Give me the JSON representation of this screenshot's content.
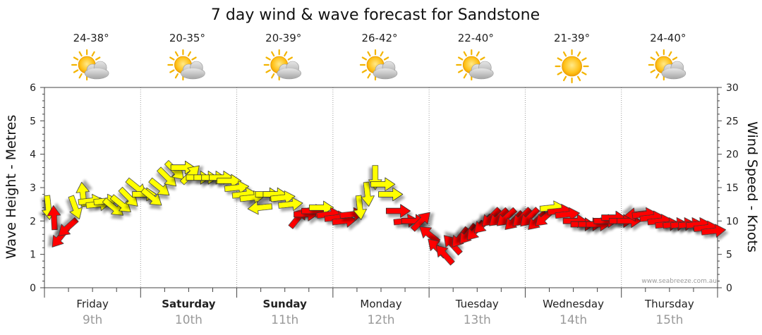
{
  "chart_data": {
    "type": "line",
    "title": "7 day wind & wave forecast for Sandstone",
    "ylabel_left": "Wave Height - Metres",
    "ylabel_right": "Wind Speed - Knots",
    "ylim_left": [
      0,
      6
    ],
    "ylim_right": [
      0,
      30
    ],
    "yticks_left": [
      "0",
      "1",
      "2",
      "3",
      "4",
      "5",
      "6"
    ],
    "yticks_right": [
      "0",
      "5",
      "10",
      "15",
      "20",
      "25",
      "30"
    ],
    "days": [
      {
        "name": "Friday",
        "date": "9th",
        "bold": false,
        "temp": "24-38°",
        "weather": "partly-cloudy-icon"
      },
      {
        "name": "Saturday",
        "date": "10th",
        "bold": true,
        "temp": "20-35°",
        "weather": "partly-cloudy-icon"
      },
      {
        "name": "Sunday",
        "date": "11th",
        "bold": true,
        "temp": "20-39°",
        "weather": "partly-cloudy-icon"
      },
      {
        "name": "Monday",
        "date": "12th",
        "bold": false,
        "temp": "26-42°",
        "weather": "partly-cloudy-icon"
      },
      {
        "name": "Tuesday",
        "date": "13th",
        "bold": false,
        "temp": "22-40°",
        "weather": "partly-cloudy-icon"
      },
      {
        "name": "Wednesday",
        "date": "14th",
        "bold": false,
        "temp": "21-39°",
        "weather": "sunny-icon"
      },
      {
        "name": "Thursday",
        "date": "15th",
        "bold": false,
        "temp": "24-40°",
        "weather": "partly-cloudy-icon"
      }
    ],
    "credit": "www.seabreeze.com.au",
    "colors": {
      "strong": "#ff0000",
      "moderate": "#ffff00",
      "light": "#00cc00",
      "outline": "#333333"
    },
    "wind_series": {
      "name": "Wind",
      "points": [
        [
          0.0,
          12.0,
          "s",
          40
        ],
        [
          0.06,
          10.5,
          "n",
          25
        ],
        [
          0.12,
          7.5,
          "sw",
          40
        ],
        [
          0.2,
          9.0,
          "sw",
          35
        ],
        [
          0.28,
          12.0,
          "sse",
          10
        ],
        [
          0.36,
          14.0,
          "n",
          80
        ],
        [
          0.44,
          13.0,
          "e",
          20
        ],
        [
          0.52,
          12.5,
          "e",
          20
        ],
        [
          0.6,
          13.0,
          "e",
          20
        ],
        [
          0.68,
          12.0,
          "se",
          60
        ],
        [
          0.76,
          12.5,
          "se",
          60
        ],
        [
          0.84,
          13.5,
          "se",
          50
        ],
        [
          0.92,
          15.0,
          "se",
          60
        ],
        [
          1.0,
          14.0,
          "e",
          10
        ],
        [
          1.08,
          13.5,
          "se",
          40
        ],
        [
          1.16,
          15.0,
          "se",
          60
        ],
        [
          1.24,
          16.5,
          "se",
          50
        ],
        [
          1.32,
          17.5,
          "se",
          30
        ],
        [
          1.4,
          18.0,
          "e",
          10
        ],
        [
          1.48,
          17.0,
          "ne",
          10
        ],
        [
          1.56,
          16.5,
          "e",
          90
        ],
        [
          1.64,
          16.5,
          "e",
          90
        ],
        [
          1.72,
          16.5,
          "e",
          90
        ],
        [
          1.8,
          16.5,
          "e",
          90
        ],
        [
          1.88,
          16.0,
          "e",
          70
        ],
        [
          1.96,
          15.0,
          "e",
          60
        ],
        [
          2.04,
          14.0,
          "e",
          60
        ],
        [
          2.12,
          13.5,
          "e",
          40
        ],
        [
          2.2,
          12.0,
          "w",
          60
        ],
        [
          2.28,
          14.0,
          "e",
          70
        ],
        [
          2.36,
          14.0,
          "e",
          70
        ],
        [
          2.44,
          13.5,
          "e",
          60
        ],
        [
          2.52,
          12.5,
          "e",
          60
        ],
        [
          2.6,
          10.5,
          "ne",
          60
        ],
        [
          2.68,
          11.0,
          "e",
          70
        ],
        [
          2.76,
          11.5,
          "e",
          70
        ],
        [
          2.84,
          12.0,
          "e",
          70
        ],
        [
          2.92,
          11.0,
          "e",
          60
        ],
        [
          3.0,
          10.5,
          "e",
          60
        ],
        [
          3.08,
          10.0,
          "e",
          60
        ],
        [
          3.16,
          11.0,
          "e",
          40
        ],
        [
          3.24,
          12.0,
          "s",
          40
        ],
        [
          3.32,
          14.0,
          "s",
          40
        ],
        [
          3.4,
          16.5,
          "s",
          30
        ],
        [
          3.48,
          15.5,
          "e",
          30
        ],
        [
          3.56,
          14.0,
          "e",
          70
        ],
        [
          3.64,
          11.5,
          "e",
          70
        ],
        [
          3.72,
          10.0,
          "e",
          80
        ],
        [
          3.8,
          10.0,
          "e",
          90
        ],
        [
          3.88,
          10.0,
          "ne",
          30
        ],
        [
          3.96,
          8.0,
          "nw",
          20
        ],
        [
          4.04,
          6.0,
          "nw",
          10
        ],
        [
          4.12,
          5.0,
          "nw",
          15
        ],
        [
          4.2,
          6.5,
          "nw",
          15
        ],
        [
          4.28,
          7.5,
          "sw",
          20
        ],
        [
          4.36,
          8.0,
          "sw",
          20
        ],
        [
          4.44,
          8.5,
          "sw",
          25
        ],
        [
          4.52,
          9.5,
          "sw",
          30
        ],
        [
          4.6,
          10.5,
          "sw",
          30
        ],
        [
          4.68,
          10.5,
          "sw",
          35
        ],
        [
          4.76,
          10.5,
          "sw",
          35
        ],
        [
          4.84,
          10.0,
          "sw",
          30
        ],
        [
          4.92,
          10.5,
          "sw",
          30
        ],
        [
          5.0,
          10.5,
          "sw",
          30
        ],
        [
          5.08,
          10.0,
          "sw",
          30
        ],
        [
          5.16,
          10.5,
          "sw",
          35
        ],
        [
          5.24,
          12.0,
          "e",
          40
        ],
        [
          5.32,
          11.5,
          "e",
          60
        ],
        [
          5.4,
          11.0,
          "e",
          60
        ],
        [
          5.48,
          10.0,
          "e",
          50
        ],
        [
          5.56,
          9.5,
          "e",
          50
        ],
        [
          5.64,
          9.5,
          "e",
          50
        ],
        [
          5.72,
          9.5,
          "e",
          50
        ],
        [
          5.8,
          10.0,
          "e",
          50
        ],
        [
          5.88,
          10.5,
          "e",
          50
        ],
        [
          5.96,
          10.0,
          "e",
          50
        ],
        [
          6.04,
          10.0,
          "e",
          50
        ],
        [
          6.12,
          11.0,
          "w",
          60
        ],
        [
          6.2,
          11.0,
          "e",
          60
        ],
        [
          6.28,
          10.5,
          "e",
          60
        ],
        [
          6.36,
          10.0,
          "e",
          60
        ],
        [
          6.44,
          9.5,
          "e",
          60
        ],
        [
          6.52,
          9.5,
          "e",
          60
        ],
        [
          6.6,
          9.5,
          "e",
          60
        ],
        [
          6.68,
          9.5,
          "e",
          60
        ],
        [
          6.76,
          9.5,
          "e",
          60
        ],
        [
          6.84,
          9.0,
          "e",
          60
        ],
        [
          6.92,
          8.5,
          "e",
          60
        ]
      ]
    },
    "wave_series": {
      "name": "Wave",
      "x": [
        0.0,
        0.5,
        1.0,
        1.5,
        2.0,
        2.5,
        3.0,
        3.5,
        4.0,
        4.5,
        5.0,
        5.5,
        6.0,
        6.5,
        7.0
      ],
      "values": [
        0,
        0,
        0,
        0,
        0,
        0,
        0,
        0,
        0,
        0,
        0,
        0,
        0,
        0,
        0
      ]
    }
  }
}
